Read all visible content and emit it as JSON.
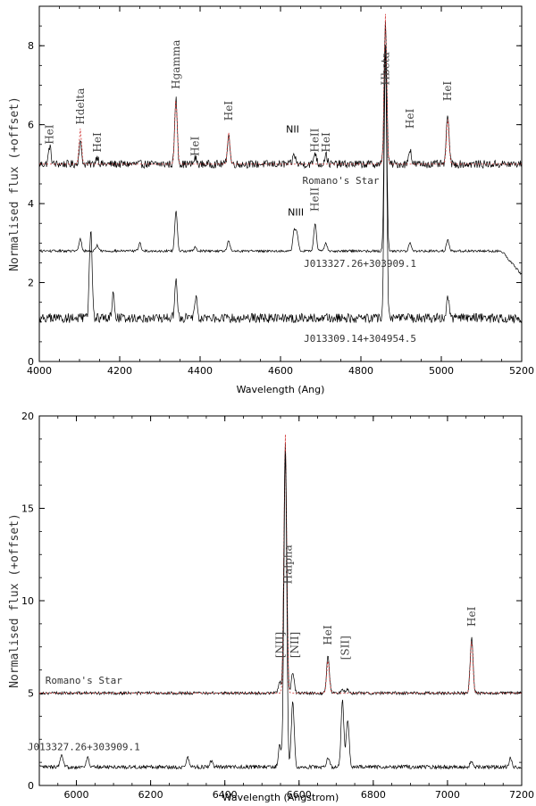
{
  "chart_data": [
    {
      "type": "line",
      "xlabel": "Wavelength (Ang)",
      "ylabel": "Normalised flux (+offset)",
      "xlim": [
        4000,
        5200
      ],
      "ylim": [
        0,
        9
      ],
      "xticks": [
        4000,
        4200,
        4400,
        4600,
        4800,
        5000,
        5200
      ],
      "yticks": [
        0,
        2,
        4,
        6,
        8
      ],
      "series": [
        {
          "name": "Romano's Star",
          "baseline": 5.0,
          "noise": 0.1,
          "color": "#000000",
          "lines": [
            [
              4026,
              0.45
            ],
            [
              4102,
              0.55
            ],
            [
              4144,
              0.2
            ],
            [
              4340,
              1.65
            ],
            [
              4388,
              0.15
            ],
            [
              4471,
              0.75
            ],
            [
              4634,
              0.25
            ],
            [
              4686,
              0.3
            ],
            [
              4713,
              0.25
            ],
            [
              4861,
              3.6
            ],
            [
              4922,
              0.4
            ],
            [
              5016,
              1.3
            ]
          ],
          "model": {
            "color": "#d03030",
            "lines": [
              [
                4102,
                0.9
              ],
              [
                4340,
                1.7
              ],
              [
                4471,
                0.8
              ],
              [
                4861,
                3.8
              ],
              [
                5016,
                1.2
              ]
            ]
          }
        },
        {
          "name": "J013327.26+303909.1",
          "baseline": 2.8,
          "noise": 0.03,
          "color": "#000000",
          "lines": [
            [
              4102,
              0.3
            ],
            [
              4144,
              0.15
            ],
            [
              4250,
              0.2
            ],
            [
              4340,
              1.0
            ],
            [
              4388,
              0.1
            ],
            [
              4471,
              0.25
            ],
            [
              4634,
              0.5
            ],
            [
              4641,
              0.45
            ],
            [
              4686,
              0.7
            ],
            [
              4713,
              0.2
            ],
            [
              4861,
              5.2
            ],
            [
              4922,
              0.2
            ],
            [
              5016,
              0.3
            ]
          ],
          "falloff": [
            5150,
            5200,
            2.2
          ]
        },
        {
          "name": "J013309.14+304954.5",
          "baseline": 1.1,
          "noise": 0.12,
          "color": "#000000",
          "lines": [
            [
              4128,
              2.3
            ],
            [
              4184,
              0.6
            ],
            [
              4340,
              0.9
            ],
            [
              4390,
              0.5
            ],
            [
              4861,
              6.8
            ],
            [
              5016,
              0.6
            ]
          ]
        }
      ],
      "annotations": [
        {
          "text": "HeI",
          "x": 4026,
          "y": 5.5
        },
        {
          "text": "Hdelta",
          "x": 4102,
          "y": 6.0
        },
        {
          "text": "HeI",
          "x": 4144,
          "y": 5.3
        },
        {
          "text": "Hgamma",
          "x": 4340,
          "y": 6.9
        },
        {
          "text": "HeI",
          "x": 4388,
          "y": 5.2
        },
        {
          "text": "HeI",
          "x": 4471,
          "y": 6.1
        },
        {
          "text": "NII",
          "x": 4630,
          "y": 5.8
        },
        {
          "text": "HeII",
          "x": 4686,
          "y": 5.3
        },
        {
          "text": "HeI",
          "x": 4713,
          "y": 5.3
        },
        {
          "text": "Hbeta",
          "x": 4861,
          "y": 7.0
        },
        {
          "text": "HeI",
          "x": 4922,
          "y": 5.9
        },
        {
          "text": "HeI",
          "x": 5016,
          "y": 6.6
        },
        {
          "text": "Romano's Star",
          "x": 4750,
          "y": 4.5
        },
        {
          "text": "NIII",
          "x": 4638,
          "y": 3.7
        },
        {
          "text": "HeII",
          "x": 4686,
          "y": 3.8
        },
        {
          "text": "J013327.26+303909.1",
          "x": 4798,
          "y": 2.4
        },
        {
          "text": "J013309.14+304954.5",
          "x": 4798,
          "y": 0.5
        }
      ]
    },
    {
      "type": "line",
      "xlabel": "Wavelength (Angstrom)",
      "ylabel": "Normalised flux (+offset)",
      "xlim": [
        5900,
        7200
      ],
      "ylim": [
        0,
        20
      ],
      "xticks": [
        6000,
        6200,
        6400,
        6600,
        6800,
        7000,
        7200
      ],
      "yticks": [
        0,
        5,
        10,
        15,
        20
      ],
      "series": [
        {
          "name": "Romano's Star",
          "baseline": 5.0,
          "noise": 0.08,
          "color": "#000000",
          "lines": [
            [
              6548,
              0.6
            ],
            [
              6563,
              13.5
            ],
            [
              6583,
              1.1
            ],
            [
              6678,
              2.0
            ],
            [
              6717,
              0.2
            ],
            [
              6731,
              0.2
            ],
            [
              7065,
              3.0
            ]
          ],
          "model": {
            "color": "#d03030",
            "lines": [
              [
                6563,
                14.0
              ],
              [
                6678,
                1.8
              ],
              [
                7065,
                2.9
              ]
            ]
          }
        },
        {
          "name": "J013327.26+303909.1",
          "baseline": 1.0,
          "noise": 0.1,
          "color": "#000000",
          "lines": [
            [
              5960,
              0.6
            ],
            [
              6030,
              0.5
            ],
            [
              6300,
              0.5
            ],
            [
              6363,
              0.3
            ],
            [
              6548,
              1.2
            ],
            [
              6563,
              17.0
            ],
            [
              6583,
              3.6
            ],
            [
              6678,
              0.5
            ],
            [
              6717,
              3.6
            ],
            [
              6731,
              2.6
            ],
            [
              7065,
              0.3
            ],
            [
              7170,
              0.5
            ]
          ]
        }
      ],
      "annotations": [
        {
          "text": "[NII]",
          "x": 6549,
          "y": 6.9
        },
        {
          "text": "[NII]",
          "x": 6588,
          "y": 6.9
        },
        {
          "text": "Halpha",
          "x": 6570,
          "y": 10.9
        },
        {
          "text": "HeI",
          "x": 6678,
          "y": 7.6
        },
        {
          "text": "[SII]",
          "x": 6724,
          "y": 6.8
        },
        {
          "text": "HeI",
          "x": 7065,
          "y": 8.6
        },
        {
          "text": "Romano's Star",
          "x": 6020,
          "y": 5.5
        },
        {
          "text": "J013327.26+303909.1",
          "x": 6020,
          "y": 1.9
        }
      ]
    }
  ]
}
